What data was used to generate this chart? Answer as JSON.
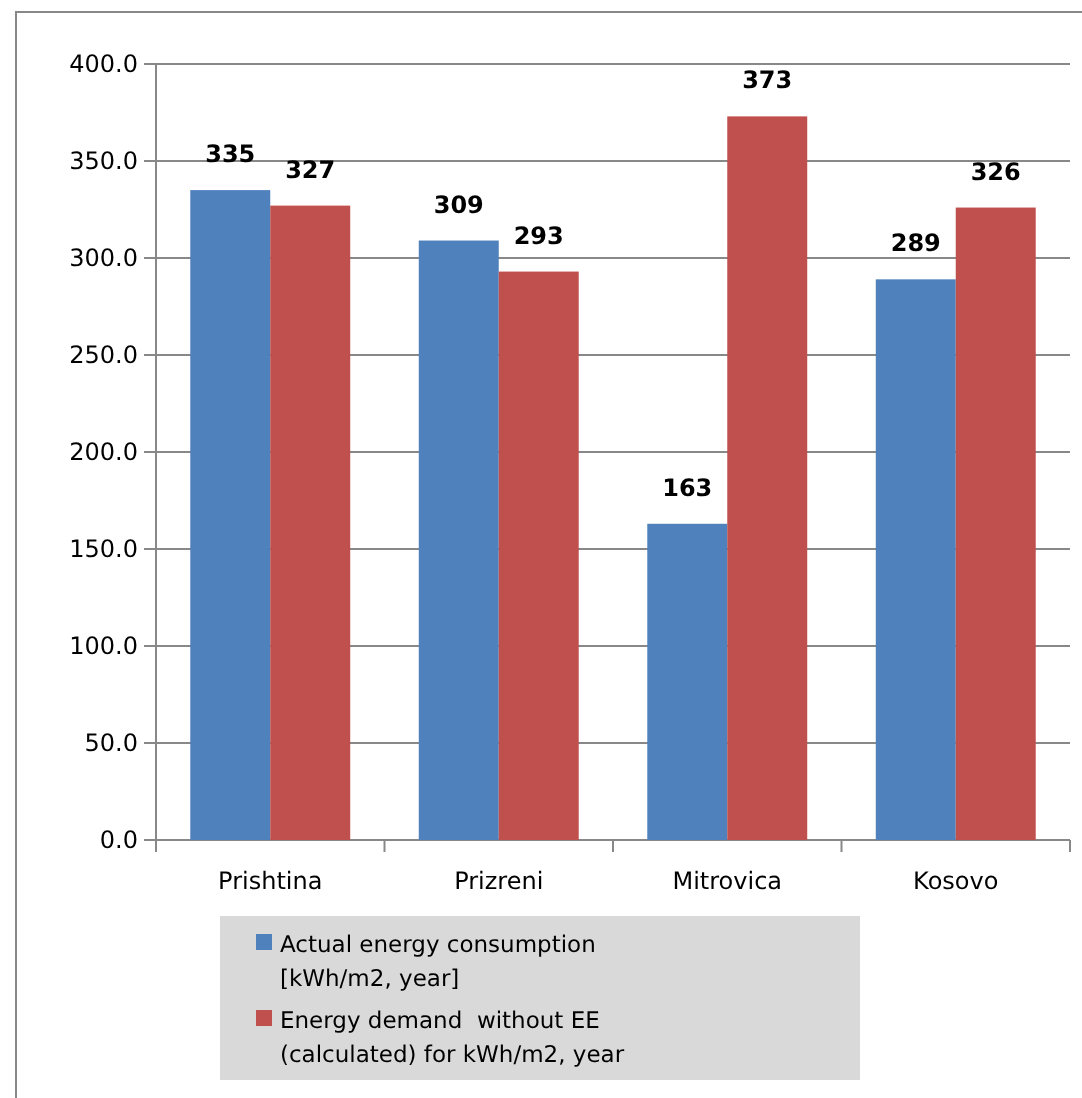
{
  "chart_data": {
    "type": "bar",
    "categories": [
      "Prishtina",
      "Prizreni",
      "Mitrovica",
      "Kosovo"
    ],
    "series": [
      {
        "name": "Actual energy consumption [kWh/m2, year]",
        "color": "#4f81bd",
        "values": [
          335,
          309,
          163,
          289
        ]
      },
      {
        "name": "Energy demand  without EE (calculated) for kWh/m2, year",
        "color": "#c0504d",
        "values": [
          327,
          293,
          373,
          326
        ]
      }
    ],
    "ylim": [
      0,
      400
    ],
    "yticks": [
      {
        "value": 0,
        "label": "0.0"
      },
      {
        "value": 50,
        "label": "50.0"
      },
      {
        "value": 100,
        "label": "100.0"
      },
      {
        "value": 150,
        "label": "150.0"
      },
      {
        "value": 200,
        "label": "200.0"
      },
      {
        "value": 250,
        "label": "250.0"
      },
      {
        "value": 300,
        "label": "300.0"
      },
      {
        "value": 350,
        "label": "350.0"
      },
      {
        "value": 400,
        "label": "400.0"
      }
    ],
    "grid": "y",
    "data_labels": true,
    "legend": "bottom"
  }
}
